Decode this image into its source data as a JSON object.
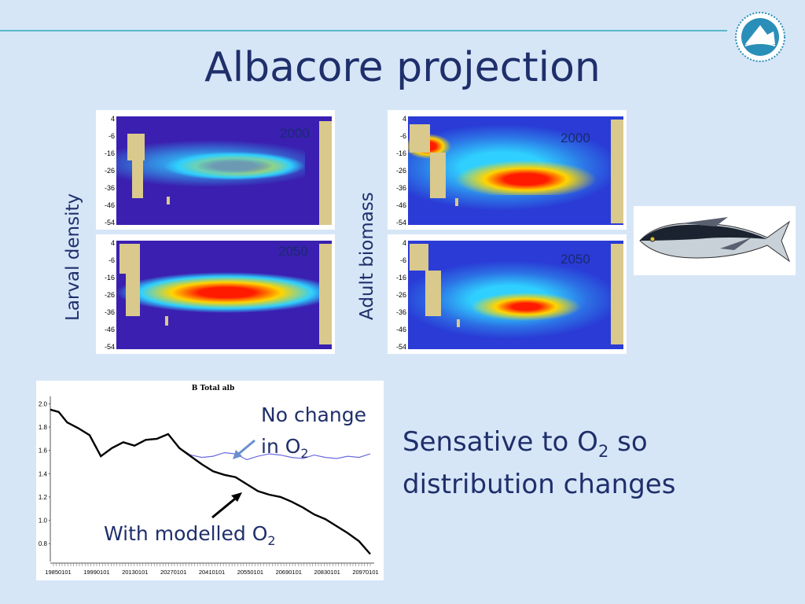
{
  "slide": {
    "title": "Albacore projection",
    "accent_color": "#5bb8c8",
    "text_color": "#1f2f6b",
    "background": "#d6e6f7",
    "logo_icon": "sprep-logo-icon",
    "fish_image": "albacore-tuna-icon"
  },
  "maps": {
    "ylabel_left": "Larval density",
    "ylabel_right": "Adult biomass",
    "year_2000": "2000",
    "year_2050": "2050",
    "yticks": [
      "4",
      "-6",
      "-16",
      "-26",
      "-36",
      "-46",
      "-54"
    ]
  },
  "notes": {
    "no_change_line1": "No change",
    "no_change_line2_pre": "in O",
    "no_change_sub": "2",
    "with_modelled_pre": "With modelled O",
    "with_modelled_sub": "2",
    "sensitive_pre": "Sensative to O",
    "sensitive_sub": "2",
    "sensitive_post": "so",
    "sensitive_line2": "distribution changes"
  },
  "chart_data": {
    "type": "line",
    "title": "B Total alb",
    "xlabel": "",
    "ylabel": "",
    "ylim": [
      0.7,
      2.05
    ],
    "y_ticks": [
      "2.0",
      "1.8",
      "1.6",
      "1.4",
      "1.2",
      "1.0",
      "0.8"
    ],
    "x_ticks": [
      "19850101",
      "19990101",
      "20130101",
      "20270101",
      "20410101",
      "20550101",
      "20690101",
      "20830101",
      "20970101"
    ],
    "x": [
      1985,
      1988,
      1991,
      1995,
      1999,
      2003,
      2007,
      2011,
      2015,
      2019,
      2023,
      2027,
      2031,
      2035,
      2039,
      2043,
      2047,
      2051,
      2055,
      2059,
      2063,
      2067,
      2071,
      2075,
      2079,
      2083,
      2087,
      2091,
      2095,
      2099
    ],
    "series": [
      {
        "name": "No change in O2",
        "color": "#6a6adf",
        "values": [
          null,
          null,
          null,
          null,
          null,
          null,
          null,
          null,
          null,
          null,
          null,
          1.74,
          1.62,
          1.56,
          1.54,
          1.55,
          1.58,
          1.57,
          1.52,
          1.55,
          1.57,
          1.56,
          1.54,
          1.53,
          1.56,
          1.54,
          1.53,
          1.55,
          1.54,
          1.57
        ]
      },
      {
        "name": "With modelled O2",
        "color": "#000000",
        "values": [
          1.95,
          1.93,
          1.84,
          1.79,
          1.73,
          1.55,
          1.62,
          1.67,
          1.64,
          1.69,
          1.7,
          1.74,
          1.62,
          1.55,
          1.48,
          1.42,
          1.39,
          1.37,
          1.31,
          1.25,
          1.22,
          1.2,
          1.16,
          1.11,
          1.05,
          1.01,
          0.95,
          0.89,
          0.82,
          0.71
        ]
      }
    ]
  }
}
